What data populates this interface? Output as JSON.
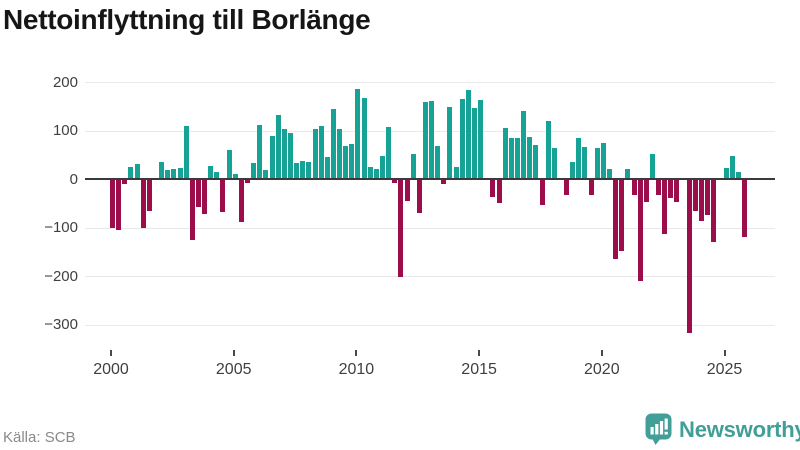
{
  "title": "Nettoinflyttning till Borlänge",
  "source": "Källa: SCB",
  "logo": {
    "text": "Newsworthy",
    "color": "#429e97",
    "icon": "newsworthy-speech-bubble-bar-chart-icon"
  },
  "colors": {
    "positive": "#17a296",
    "negative": "#9b0d4b",
    "grid": "#e9e9e9",
    "zero_line": "#3a3a3a",
    "axis_text": "#3f3f3f",
    "title_text": "#161616",
    "source_text": "#8a8a8a"
  },
  "chart_data": {
    "type": "bar",
    "title": "Nettoinflyttning till Borlänge",
    "frequency": "quarterly",
    "start_year": 2000,
    "end_year": 2025,
    "ylim": [
      -340,
      210
    ],
    "yticks": [
      200,
      100,
      0,
      -100,
      -200,
      -300
    ],
    "xticks": [
      2000,
      2005,
      2010,
      2015,
      2020,
      2025
    ],
    "grid": "horizontal",
    "legend": "none",
    "series": [
      {
        "name": "Nettoinflyttning",
        "values_by_year": {
          "2000": [
            -100,
            -105,
            -10,
            25
          ],
          "2001": [
            30,
            -100,
            -65,
            0
          ],
          "2002": [
            36,
            19,
            21,
            23
          ],
          "2003": [
            110,
            -126,
            -57,
            -72
          ],
          "2004": [
            27,
            14,
            -67,
            60
          ],
          "2005": [
            10,
            -88,
            -9,
            34
          ],
          "2006": [
            111,
            18,
            89,
            132
          ],
          "2007": [
            104,
            94,
            34,
            37
          ],
          "2008": [
            36,
            104,
            109,
            46
          ],
          "2009": [
            144,
            104,
            69,
            73
          ],
          "2010": [
            185,
            168,
            24,
            21
          ],
          "2011": [
            47,
            108,
            -8,
            -201
          ],
          "2012": [
            -45,
            52,
            -69,
            159
          ],
          "2013": [
            161,
            68,
            -10,
            149
          ],
          "2014": [
            25,
            166,
            183,
            146
          ],
          "2015": [
            164,
            0,
            -38,
            -49
          ],
          "2016": [
            105,
            85,
            85,
            140
          ],
          "2017": [
            86,
            71,
            -53,
            120
          ],
          "2018": [
            63,
            0,
            -32,
            36
          ],
          "2019": [
            85,
            67,
            -32,
            64
          ],
          "2020": [
            74,
            20,
            -164,
            -148
          ],
          "2021": [
            20,
            -33,
            -210,
            -48
          ],
          "2022": [
            51,
            -33,
            -114,
            -40
          ],
          "2023": [
            -48,
            0,
            -318,
            -66
          ],
          "2024": [
            -87,
            -75,
            -130,
            0
          ],
          "2025": [
            22,
            47,
            15,
            -120
          ]
        }
      }
    ]
  }
}
